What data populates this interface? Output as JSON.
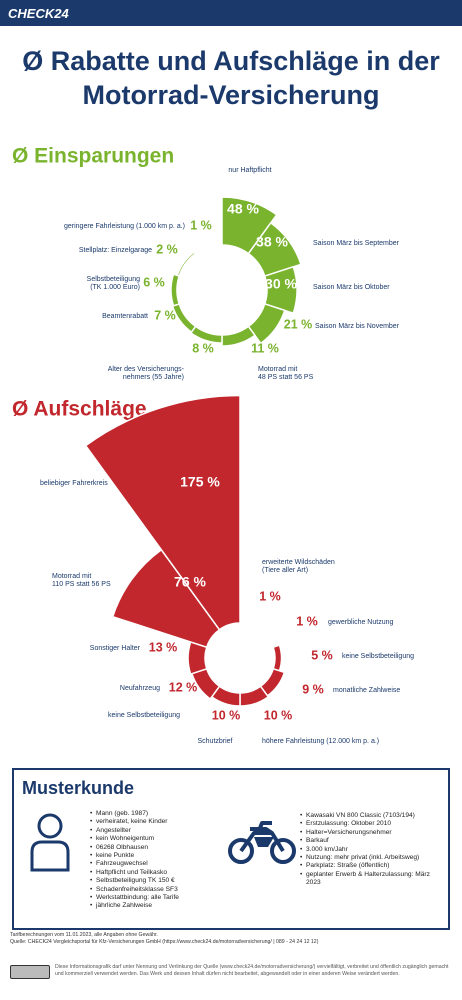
{
  "header": {
    "logo": "CHECK24",
    "title": "Ø Rabatte und Aufschläge in der Motorrad-Versicherung"
  },
  "chart_data": [
    {
      "type": "polar",
      "title": "Ø Einsparungen",
      "color": "#7ab32e",
      "categories": [
        "nur Haftpflicht",
        "Saison März bis September",
        "Saison März bis Oktober",
        "Saison März bis November",
        "Motorrad mit\n48 PS statt 56 PS",
        "Alter des Versicherungs-\nnehmers (55 Jahre)",
        "Beamtenrabatt",
        "Selbstbeteiligung\n(TK 1.000 Euro)",
        "Stellplatz: Einzelgarage",
        "geringere Fahrleistung (1.000 km p. a.)"
      ],
      "values": [
        48,
        38,
        30,
        21,
        11,
        8,
        7,
        6,
        2,
        1
      ],
      "value_labels": [
        "48 %",
        "38 %",
        "30 %",
        "21 %",
        "11 %",
        "8 %",
        "7 %",
        "6 %",
        "2 %",
        "1 %"
      ]
    },
    {
      "type": "polar",
      "title": "Ø Aufschläge",
      "color": "#c1272d",
      "categories": [
        "erweiterte Wildschäden\n(Tiere aller Art)",
        "gewerbliche Nutzung",
        "keine Selbstbeteiligung",
        "monatliche Zahlweise",
        "höhere Fahrleistung (12.000 km p. a.)",
        "Schutzbrief",
        "Neufahrzeug",
        "Sonstiger Halter",
        "Motorrad mit\n110 PS statt 56 PS",
        "beliebiger Fahrerkreis"
      ],
      "values": [
        1,
        1,
        5,
        9,
        10,
        10,
        12,
        13,
        76,
        175
      ],
      "value_labels": [
        "1 %",
        "1 %",
        "5 %",
        "9 %",
        "10 %",
        "10 %",
        "12 %",
        "13 %",
        "76 %",
        "175 %"
      ],
      "annotations": [
        "keine Selbstbeteiligung"
      ]
    }
  ],
  "musterkunde": {
    "title": "Musterkunde",
    "fahrer": [
      "Mann (geb. 1987)",
      "verheiratet, keine Kinder",
      "Angestellter",
      "kein Wohneigentum",
      "06268 Olbhausen",
      "keine Punkte",
      "Fahrzeugwechsel",
      "Haftpflicht und Teilkasko",
      "Selbstbeteiligung TK 150 €",
      "Schadenfreiheitsklasse SF3",
      "Werkstattbindung: alle Tarife",
      "jährliche Zahlweise"
    ],
    "motorrad": [
      "Kawasaki VN 800 Classic (7103/194)",
      "Erstzulassung: Oktober 2010",
      "Halter=Versicherungsnehmer",
      "Barkauf",
      "3.000 km/Jahr",
      "Nutzung: mehr privat (inkl. Arbeitsweg)",
      "Parkplatz: Straße (öffentlich)",
      "geplanter Erwerb & Halterzulassung: März 2023"
    ]
  },
  "footer": {
    "notes": [
      "Tarifberechnungen vom 11.01.2023, alle Angaben ohne Gewähr.",
      "Quelle: CHECK24 Vergleichsportal für Kfz-Versicherungen GmbH (https://www.check24.de/motorradversicherung/ | 089 - 24 24 12 12)"
    ],
    "license": "Diese Informationsgrafik darf unter Nennung und Verlinkung der Quelle (www.check24.de/motorradversicherung/) vervielfältigt, verbreitet und öffentlich zugänglich gemacht und kommerziell verwendet werden. Das Werk und dessen Inhalt dürfen nicht bearbeitet, abgewandelt oder in einer anderen Weise verändert werden."
  }
}
